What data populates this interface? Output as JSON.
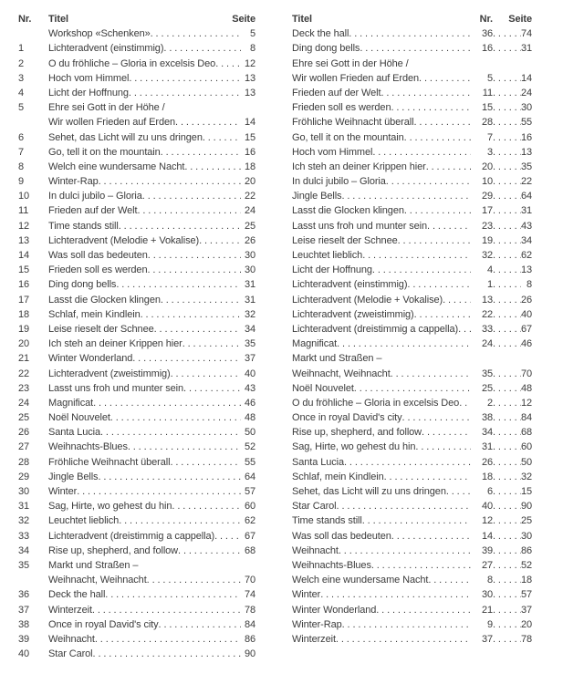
{
  "page": {
    "background": "#ffffff",
    "text_color": "#3b3b3b"
  },
  "left_column": {
    "headers": {
      "nr": "Nr.",
      "titel": "Titel",
      "seite": "Seite"
    },
    "entries": [
      {
        "nr": "",
        "title": [
          "Workshop «Schenken»"
        ],
        "seite": "5"
      },
      {
        "nr": "1",
        "title": [
          "Lichteradvent (einstimmig)"
        ],
        "seite": "8"
      },
      {
        "nr": "2",
        "title": [
          "O du fröhliche – Gloria in excelsis Deo"
        ],
        "seite": "12"
      },
      {
        "nr": "3",
        "title": [
          "Hoch vom Himmel"
        ],
        "seite": "13"
      },
      {
        "nr": "4",
        "title": [
          "Licht der Hoffnung"
        ],
        "seite": "13"
      },
      {
        "nr": "5",
        "title": [
          "Ehre sei Gott in der Höhe /",
          "Wir wollen Frieden auf Erden"
        ],
        "seite": "14"
      },
      {
        "nr": "6",
        "title": [
          "Sehet, das Licht will zu uns dringen"
        ],
        "seite": "15"
      },
      {
        "nr": "7",
        "title": [
          "Go, tell it on the mountain"
        ],
        "seite": "16"
      },
      {
        "nr": "8",
        "title": [
          "Welch eine wundersame Nacht"
        ],
        "seite": "18"
      },
      {
        "nr": "9",
        "title": [
          "Winter-Rap"
        ],
        "seite": "20"
      },
      {
        "nr": "10",
        "title": [
          "In dulci jubilo – Gloria"
        ],
        "seite": "22"
      },
      {
        "nr": "11",
        "title": [
          "Frieden auf der Welt"
        ],
        "seite": "24"
      },
      {
        "nr": "12",
        "title": [
          "Time stands still"
        ],
        "seite": "25"
      },
      {
        "nr": "13",
        "title": [
          "Lichteradvent (Melodie + Vokalise)"
        ],
        "seite": "26"
      },
      {
        "nr": "14",
        "title": [
          "Was soll das bedeuten"
        ],
        "seite": "30"
      },
      {
        "nr": "15",
        "title": [
          "Frieden soll es werden"
        ],
        "seite": "30"
      },
      {
        "nr": "16",
        "title": [
          "Ding dong bells"
        ],
        "seite": "31"
      },
      {
        "nr": "17",
        "title": [
          "Lasst die Glocken klingen"
        ],
        "seite": "31"
      },
      {
        "nr": "18",
        "title": [
          "Schlaf, mein Kindlein"
        ],
        "seite": "32"
      },
      {
        "nr": "19",
        "title": [
          "Leise rieselt der Schnee"
        ],
        "seite": "34"
      },
      {
        "nr": "20",
        "title": [
          "Ich steh an deiner Krippen hier"
        ],
        "seite": "35"
      },
      {
        "nr": "21",
        "title": [
          "Winter Wonderland"
        ],
        "seite": "37"
      },
      {
        "nr": "22",
        "title": [
          "Lichteradvent (zweistimmig)"
        ],
        "seite": "40"
      },
      {
        "nr": "23",
        "title": [
          "Lasst uns froh und munter sein"
        ],
        "seite": "43"
      },
      {
        "nr": "24",
        "title": [
          "Magnificat"
        ],
        "seite": "46"
      },
      {
        "nr": "25",
        "title": [
          "Noël Nouvelet"
        ],
        "seite": "48"
      },
      {
        "nr": "26",
        "title": [
          "Santa Lucia"
        ],
        "seite": "50"
      },
      {
        "nr": "27",
        "title": [
          "Weihnachts-Blues"
        ],
        "seite": "52"
      },
      {
        "nr": "28",
        "title": [
          "Fröhliche Weihnacht überall"
        ],
        "seite": "55"
      },
      {
        "nr": "29",
        "title": [
          "Jingle Bells"
        ],
        "seite": "64"
      },
      {
        "nr": "30",
        "title": [
          "Winter"
        ],
        "seite": "57"
      },
      {
        "nr": "31",
        "title": [
          "Sag, Hirte, wo gehest du hin"
        ],
        "seite": "60"
      },
      {
        "nr": "32",
        "title": [
          "Leuchtet lieblich"
        ],
        "seite": "62"
      },
      {
        "nr": "33",
        "title": [
          "Lichteradvent (dreistimmig a cappella)"
        ],
        "seite": "67"
      },
      {
        "nr": "34",
        "title": [
          "Rise up, shepherd, and follow"
        ],
        "seite": "68"
      },
      {
        "nr": "35",
        "title": [
          "Markt und Straßen –",
          "Weihnacht, Weihnacht"
        ],
        "seite": "70"
      },
      {
        "nr": "36",
        "title": [
          "Deck the hall"
        ],
        "seite": "74"
      },
      {
        "nr": "37",
        "title": [
          "Winterzeit"
        ],
        "seite": "78"
      },
      {
        "nr": "38",
        "title": [
          "Once in royal David's city"
        ],
        "seite": "84"
      },
      {
        "nr": "39",
        "title": [
          "Weihnacht"
        ],
        "seite": "86"
      },
      {
        "nr": "40",
        "title": [
          "Star Carol"
        ],
        "seite": "90"
      }
    ]
  },
  "right_column": {
    "headers": {
      "titel": "Titel",
      "nr": "Nr.",
      "seite": "Seite"
    },
    "entries": [
      {
        "title": [
          "Deck the hall"
        ],
        "nr": "36",
        "seite": "74"
      },
      {
        "title": [
          "Ding dong bells"
        ],
        "nr": "16",
        "seite": "31"
      },
      {
        "title": [
          "Ehre sei Gott in der Höhe /",
          "Wir wollen Frieden auf Erden"
        ],
        "nr": "5",
        "seite": "14"
      },
      {
        "title": [
          "Frieden auf der Welt"
        ],
        "nr": "11",
        "seite": "24"
      },
      {
        "title": [
          "Frieden soll es werden"
        ],
        "nr": "15",
        "seite": "30"
      },
      {
        "title": [
          "Fröhliche Weihnacht überall"
        ],
        "nr": "28",
        "seite": "55"
      },
      {
        "title": [
          "Go, tell it on the mountain"
        ],
        "nr": "7",
        "seite": "16"
      },
      {
        "title": [
          "Hoch vom Himmel"
        ],
        "nr": "3",
        "seite": "13"
      },
      {
        "title": [
          "Ich steh an deiner Krippen hier"
        ],
        "nr": "20",
        "seite": "35"
      },
      {
        "title": [
          "In dulci jubilo – Gloria"
        ],
        "nr": "10",
        "seite": "22"
      },
      {
        "title": [
          "Jingle Bells"
        ],
        "nr": "29",
        "seite": "64"
      },
      {
        "title": [
          "Lasst die Glocken klingen"
        ],
        "nr": "17",
        "seite": "31"
      },
      {
        "title": [
          "Lasst uns froh und munter sein"
        ],
        "nr": "23",
        "seite": "43"
      },
      {
        "title": [
          "Leise rieselt der Schnee"
        ],
        "nr": "19",
        "seite": "34"
      },
      {
        "title": [
          "Leuchtet lieblich"
        ],
        "nr": "32",
        "seite": "62"
      },
      {
        "title": [
          "Licht der Hoffnung"
        ],
        "nr": "4",
        "seite": "13"
      },
      {
        "title": [
          "Lichteradvent (einstimmig)"
        ],
        "nr": "1",
        "seite": "8"
      },
      {
        "title": [
          "Lichteradvent (Melodie + Vokalise)"
        ],
        "nr": "13",
        "seite": "26"
      },
      {
        "title": [
          "Lichteradvent (zweistimmig)"
        ],
        "nr": "22",
        "seite": "40"
      },
      {
        "title": [
          "Lichteradvent (dreistimmig a cappella)"
        ],
        "nr": "33",
        "seite": "67"
      },
      {
        "title": [
          "Magnificat"
        ],
        "nr": "24",
        "seite": "46"
      },
      {
        "title": [
          "Markt und Straßen –",
          "Weihnacht, Weihnacht"
        ],
        "nr": "35",
        "seite": "70"
      },
      {
        "title": [
          "Noël Nouvelet"
        ],
        "nr": "25",
        "seite": "48"
      },
      {
        "title": [
          "O du fröhliche – Gloria in excelsis Deo"
        ],
        "nr": "2",
        "seite": "12"
      },
      {
        "title": [
          "Once in royal David's city"
        ],
        "nr": "38",
        "seite": "84"
      },
      {
        "title": [
          "Rise up, shepherd, and follow"
        ],
        "nr": "34",
        "seite": "68"
      },
      {
        "title": [
          "Sag, Hirte, wo gehest du hin"
        ],
        "nr": "31",
        "seite": "60"
      },
      {
        "title": [
          "Santa Lucia"
        ],
        "nr": "26",
        "seite": "50"
      },
      {
        "title": [
          "Schlaf, mein Kindlein"
        ],
        "nr": "18",
        "seite": "32"
      },
      {
        "title": [
          "Sehet, das Licht will zu uns dringen"
        ],
        "nr": "6",
        "seite": "15"
      },
      {
        "title": [
          "Star Carol"
        ],
        "nr": "40",
        "seite": "90"
      },
      {
        "title": [
          "Time stands still"
        ],
        "nr": "12",
        "seite": "25"
      },
      {
        "title": [
          "Was soll das bedeuten"
        ],
        "nr": "14",
        "seite": "30"
      },
      {
        "title": [
          "Weihnacht"
        ],
        "nr": "39",
        "seite": "86"
      },
      {
        "title": [
          "Weihnachts-Blues"
        ],
        "nr": "27",
        "seite": "52"
      },
      {
        "title": [
          "Welch eine wundersame Nacht"
        ],
        "nr": "8",
        "seite": "18"
      },
      {
        "title": [
          "Winter"
        ],
        "nr": "30",
        "seite": "57"
      },
      {
        "title": [
          "Winter Wonderland"
        ],
        "nr": "21",
        "seite": "37"
      },
      {
        "title": [
          "Winter-Rap"
        ],
        "nr": "9",
        "seite": "20"
      },
      {
        "title": [
          "Winterzeit"
        ],
        "nr": "37",
        "seite": "78"
      }
    ]
  }
}
